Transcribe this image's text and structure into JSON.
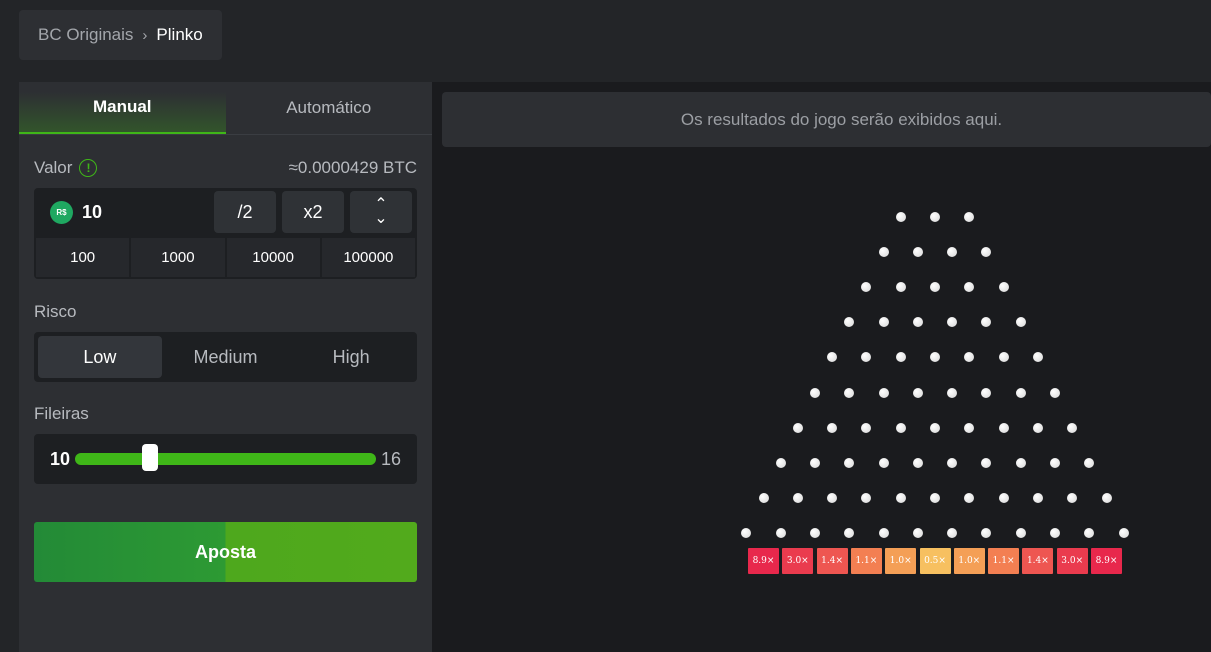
{
  "breadcrumb": {
    "parent": "BC Originais",
    "separator": "›",
    "current": "Plinko"
  },
  "tabs": {
    "manual": "Manual",
    "auto": "Automático"
  },
  "bet": {
    "label": "Valor",
    "info_icon": "!",
    "conversion": "≈0.0000429 BTC",
    "currency_icon": "R$",
    "amount": "10",
    "half": "/2",
    "double": "x2",
    "up_arrow": "⌃",
    "down_arrow": "⌄",
    "presets": [
      "100",
      "1000",
      "10000",
      "100000"
    ]
  },
  "risk": {
    "label": "Risco",
    "options": [
      "Low",
      "Medium",
      "High"
    ],
    "selected": "Low"
  },
  "rows": {
    "label": "Fileiras",
    "min": "10",
    "max": "16",
    "value_fraction": 0.25
  },
  "action": {
    "bet_label": "Aposta"
  },
  "game": {
    "results_placeholder": "Os resultados do jogo serão exibidos aqui.",
    "pin_rows": 10,
    "multipliers": [
      "8.9×",
      "3.0×",
      "1.4×",
      "1.1×",
      "1.0×",
      "0.5×",
      "1.0×",
      "1.1×",
      "1.4×",
      "3.0×",
      "8.9×"
    ],
    "multiplier_colors": [
      "#e8284c",
      "#ea3b4e",
      "#ee5651",
      "#f37f52",
      "#f49f56",
      "#f7c060",
      "#f49f56",
      "#f37f52",
      "#ee5651",
      "#ea3b4e",
      "#e8284c"
    ]
  },
  "colors": {
    "accent": "#3fb618",
    "panel": "#2d2f33",
    "background": "#232528",
    "game_bg": "#1a1b1e"
  }
}
